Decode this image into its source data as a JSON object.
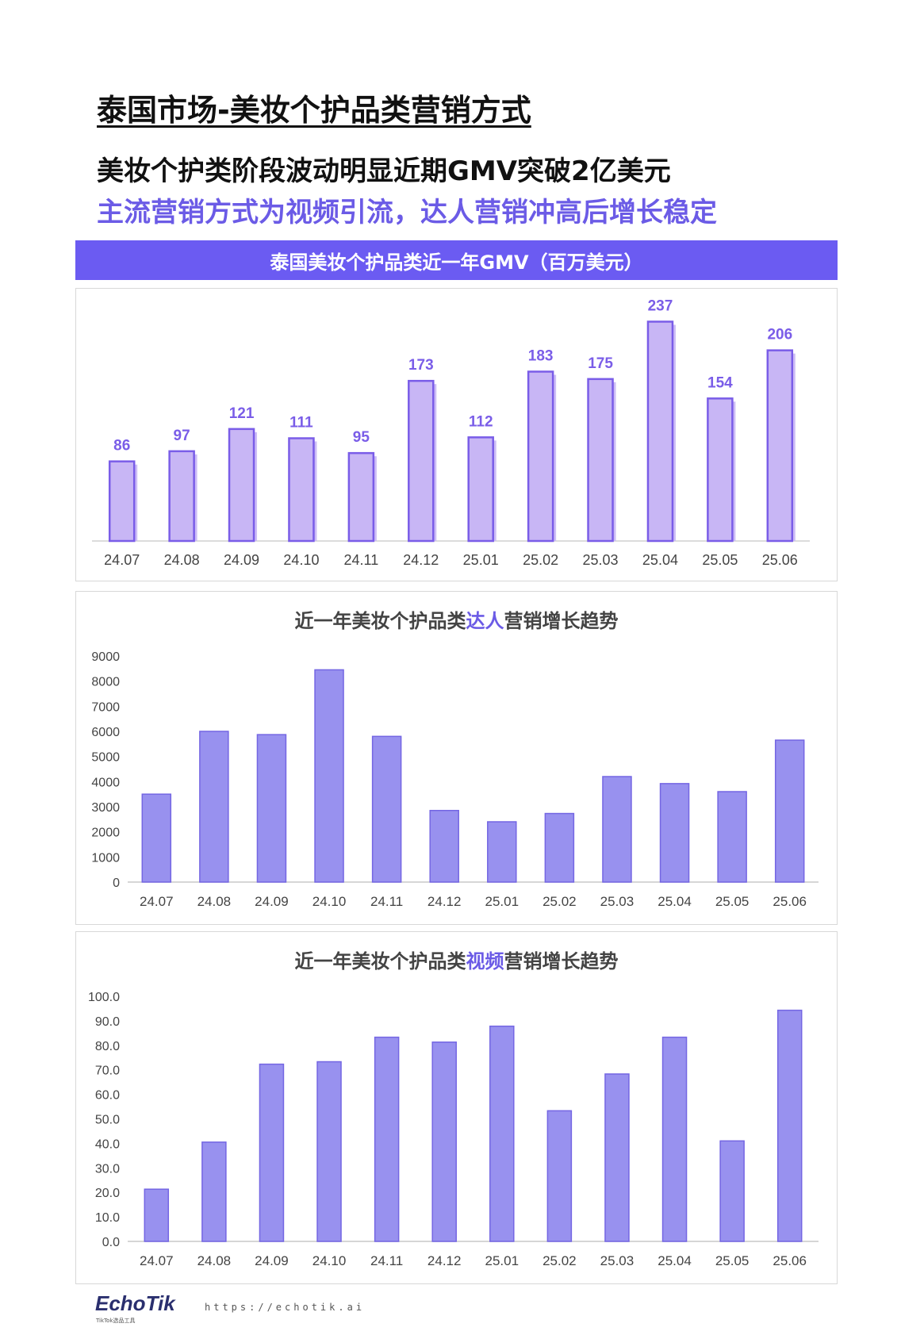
{
  "header": {
    "title": "泰国市场-美妆个护品类营销方式",
    "headline_1": "美妆个护类阶段波动明显近期GMV突破2亿美元",
    "headline_2": "主流营销方式为视频引流，达人营销冲高后增长稳定",
    "banner": "泰国美妆个护品类近一年GMV（百万美元）"
  },
  "colors": {
    "accent": "#6b5bf2",
    "gmv_fill": "#c8b6f5",
    "gmv_stroke": "#7a5de8",
    "bar_fill": "#9891ef",
    "bar_stroke": "#7466e3"
  },
  "chart_data": [
    {
      "type": "bar",
      "title": "泰国美妆个护品类近一年GMV（百万美元）",
      "categories": [
        "24.07",
        "24.08",
        "24.09",
        "24.10",
        "24.11",
        "24.12",
        "25.01",
        "25.02",
        "25.03",
        "25.04",
        "25.05",
        "25.06"
      ],
      "values": [
        86,
        97,
        121,
        111,
        95,
        173,
        112,
        183,
        175,
        237,
        154,
        206
      ],
      "data_labels": true,
      "ylim": [
        0,
        240
      ],
      "y_axis_visible": false,
      "grid": false
    },
    {
      "type": "bar",
      "title_parts": [
        "近一年美妆个护品类",
        "达人",
        "营销增长趋势"
      ],
      "categories": [
        "24.07",
        "24.08",
        "24.09",
        "24.10",
        "24.11",
        "24.12",
        "25.01",
        "25.02",
        "25.03",
        "25.04",
        "25.05",
        "25.06"
      ],
      "values": [
        3500,
        6000,
        5870,
        8450,
        5800,
        2850,
        2400,
        2730,
        4200,
        3920,
        3600,
        5650
      ],
      "ylim": [
        0,
        9000
      ],
      "yticks": [
        "0",
        "1000",
        "2000",
        "3000",
        "4000",
        "5000",
        "6000",
        "7000",
        "8000",
        "9000"
      ],
      "grid": false
    },
    {
      "type": "bar",
      "title_parts": [
        "近一年美妆个护品类",
        "视频",
        "营销增长趋势"
      ],
      "categories": [
        "24.07",
        "24.08",
        "24.09",
        "24.10",
        "24.11",
        "24.12",
        "25.01",
        "25.02",
        "25.03",
        "25.04",
        "25.05",
        "25.06"
      ],
      "values": [
        21.3,
        40.5,
        72.3,
        73.3,
        83.3,
        81.3,
        87.8,
        53.3,
        68.3,
        83.3,
        41.0,
        94.3
      ],
      "ylim": [
        0,
        100
      ],
      "yticks": [
        "0.0",
        "10.0",
        "20.0",
        "30.0",
        "40.0",
        "50.0",
        "60.0",
        "70.0",
        "80.0",
        "90.0",
        "100.0"
      ],
      "grid": false
    }
  ],
  "footer": {
    "logo": "EchoTik",
    "logo_sub": "TikTok选品工具",
    "url": "https://echotik.ai"
  }
}
